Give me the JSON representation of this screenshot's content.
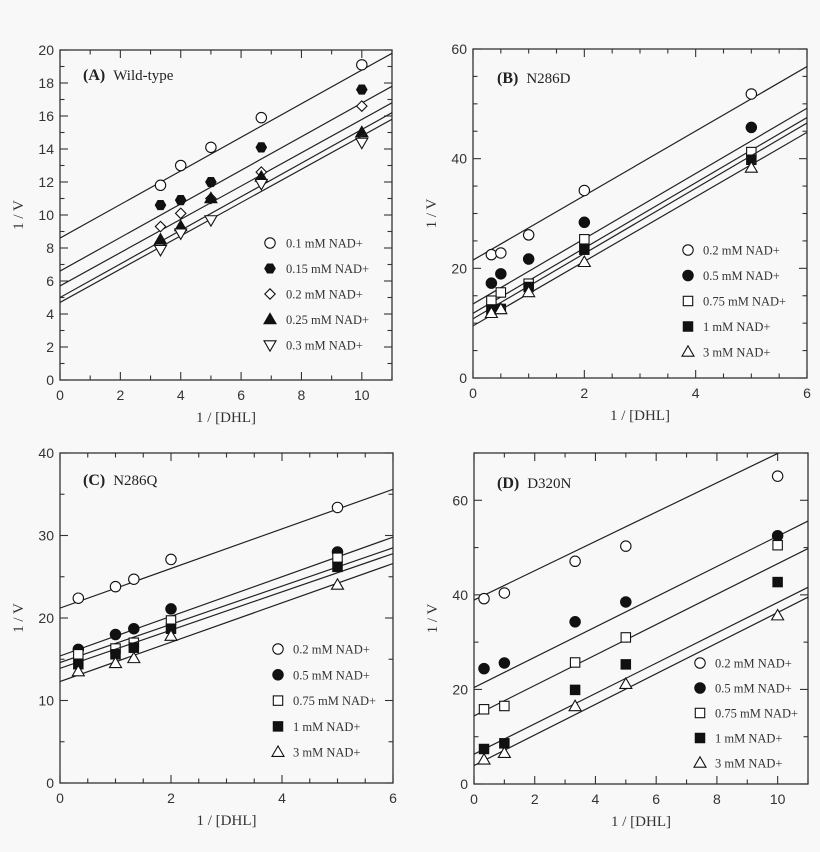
{
  "chart_data": [
    {
      "type": "scatter",
      "panel_tag": "(A)",
      "title": "Wild-type",
      "xlabel": "1 / [DHL]",
      "ylabel": "1 / V",
      "xlim": [
        0,
        11
      ],
      "ylim": [
        0,
        20
      ],
      "xticks": [
        0,
        2,
        4,
        6,
        8,
        10
      ],
      "yticks": [
        0,
        2,
        4,
        6,
        8,
        10,
        12,
        14,
        16,
        18,
        20
      ],
      "x_minor_step": 1,
      "y_minor_step": 1,
      "grid": false,
      "legend": "right",
      "x": [
        3.33,
        4,
        5,
        6.67,
        10
      ],
      "series": [
        {
          "name": "0.1 mM NAD+",
          "marker": "open-circle",
          "values": [
            11.8,
            13.0,
            14.1,
            15.9,
            19.1
          ],
          "fit": [
            8.6,
            19.8
          ]
        },
        {
          "name": "0.15 mM NAD+",
          "marker": "filled-hexagon",
          "values": [
            10.6,
            10.9,
            12.0,
            14.1,
            17.6
          ],
          "fit": [
            6.6,
            17.8
          ]
        },
        {
          "name": "0.2 mM NAD+",
          "marker": "open-diamond",
          "values": [
            9.3,
            10.1,
            11.0,
            12.6,
            16.6
          ],
          "fit": [
            5.7,
            16.8
          ]
        },
        {
          "name": "0.25 mM NAD+",
          "marker": "filled-triangle",
          "values": [
            8.5,
            9.3,
            11.0,
            12.3,
            15.0
          ],
          "fit": [
            5.0,
            16.2
          ]
        },
        {
          "name": "0.3 mM NAD+",
          "marker": "open-triangle-down",
          "values": [
            7.9,
            8.9,
            9.7,
            11.9,
            14.4
          ],
          "fit": [
            4.7,
            15.8
          ]
        }
      ]
    },
    {
      "type": "scatter",
      "panel_tag": "(B)",
      "title": "N286D",
      "xlabel": "1 / [DHL]",
      "ylabel": "1 / V",
      "xlim": [
        0,
        6
      ],
      "ylim": [
        0,
        60
      ],
      "xticks": [
        0,
        2,
        4,
        6
      ],
      "yticks": [
        0,
        20,
        40,
        60
      ],
      "x_minor_step": 0.5,
      "y_minor_step": 5,
      "grid": false,
      "legend": "right",
      "x": [
        0.33,
        0.5,
        1,
        2,
        5
      ],
      "series": [
        {
          "name": "0.2 mM NAD+",
          "marker": "open-circle",
          "values": [
            22.5,
            22.8,
            26.1,
            34.2,
            51.8
          ],
          "fit": [
            21.5,
            56.8
          ]
        },
        {
          "name": "0.5 mM NAD+",
          "marker": "filled-circle",
          "values": [
            17.3,
            19.0,
            21.7,
            28.4,
            45.7
          ],
          "fit": [
            13.5,
            49.2
          ]
        },
        {
          "name": "0.75 mM NAD+",
          "marker": "open-square",
          "values": [
            14.1,
            15.6,
            17.2,
            25.3,
            41.2
          ],
          "fit": [
            11.8,
            47.5
          ]
        },
        {
          "name": "1 mM NAD+",
          "marker": "filled-square",
          "values": [
            12.5,
            12.6,
            16.6,
            23.4,
            39.8
          ],
          "fit": [
            10.8,
            46.5
          ]
        },
        {
          "name": "3 mM NAD+",
          "marker": "open-triangle",
          "values": [
            11.8,
            12.5,
            15.6,
            21.1,
            38.3
          ],
          "fit": [
            9.5,
            44.8
          ]
        }
      ]
    },
    {
      "type": "scatter",
      "panel_tag": "(C)",
      "title": "N286Q",
      "xlabel": "1 / [DHL]",
      "ylabel": "1 / V",
      "xlim": [
        0,
        6
      ],
      "ylim": [
        0,
        40
      ],
      "xticks": [
        0,
        2,
        4,
        6
      ],
      "yticks": [
        0,
        10,
        20,
        30,
        40
      ],
      "x_minor_step": 0.5,
      "y_minor_step": 5,
      "grid": false,
      "legend": "right",
      "x": [
        0.33,
        1,
        1.33,
        2,
        5
      ],
      "series": [
        {
          "name": "0.2 mM NAD+",
          "marker": "open-circle",
          "values": [
            22.4,
            23.8,
            24.7,
            27.1,
            33.4
          ],
          "fit": [
            21.2,
            35.6
          ]
        },
        {
          "name": "0.5 mM NAD+",
          "marker": "filled-circle",
          "values": [
            16.2,
            18.0,
            18.7,
            21.1,
            28.0
          ],
          "fit": [
            15.4,
            29.8
          ]
        },
        {
          "name": "0.75 mM NAD+",
          "marker": "open-square",
          "values": [
            15.6,
            16.3,
            17.0,
            19.7,
            27.3
          ],
          "fit": [
            14.6,
            28.5
          ]
        },
        {
          "name": "1 mM NAD+",
          "marker": "filled-square",
          "values": [
            14.4,
            15.6,
            16.4,
            18.7,
            26.2
          ],
          "fit": [
            13.9,
            27.8
          ]
        },
        {
          "name": "3 mM NAD+",
          "marker": "open-triangle",
          "values": [
            13.5,
            14.5,
            15.1,
            17.8,
            24.0
          ],
          "fit": [
            12.3,
            26.6
          ]
        }
      ]
    },
    {
      "type": "scatter",
      "panel_tag": "(D)",
      "title": "D320N",
      "xlabel": "1 / [DHL]",
      "ylabel": "1 / V",
      "xlim": [
        0,
        11
      ],
      "ylim": [
        0,
        70
      ],
      "xticks": [
        0,
        2,
        4,
        6,
        8,
        10
      ],
      "yticks": [
        0,
        20,
        40,
        60
      ],
      "x_minor_step": 1,
      "y_minor_step": 10,
      "grid": false,
      "legend": "right",
      "x": [
        0.33,
        1,
        3.33,
        5,
        10
      ],
      "series": [
        {
          "name": "0.2 mM NAD+",
          "marker": "open-circle",
          "values": [
            39.2,
            40.4,
            47.1,
            50.3,
            65.1
          ],
          "fit": [
            38.9,
            73.0
          ]
        },
        {
          "name": "0.5 mM NAD+",
          "marker": "filled-circle",
          "values": [
            24.4,
            25.6,
            34.3,
            38.5,
            52.5
          ],
          "fit": [
            20.4,
            55.6
          ]
        },
        {
          "name": "0.75 mM NAD+",
          "marker": "open-square",
          "values": [
            15.8,
            16.5,
            25.7,
            31.0,
            50.5
          ],
          "fit": [
            14.4,
            49.8
          ]
        },
        {
          "name": "1 mM NAD+",
          "marker": "filled-square",
          "values": [
            7.4,
            8.6,
            19.9,
            25.3,
            42.7
          ],
          "fit": [
            6.3,
            41.6
          ]
        },
        {
          "name": "3 mM NAD+",
          "marker": "open-triangle",
          "values": [
            5.1,
            6.5,
            16.4,
            21.1,
            35.6
          ],
          "fit": [
            3.9,
            39.5
          ]
        }
      ]
    }
  ]
}
